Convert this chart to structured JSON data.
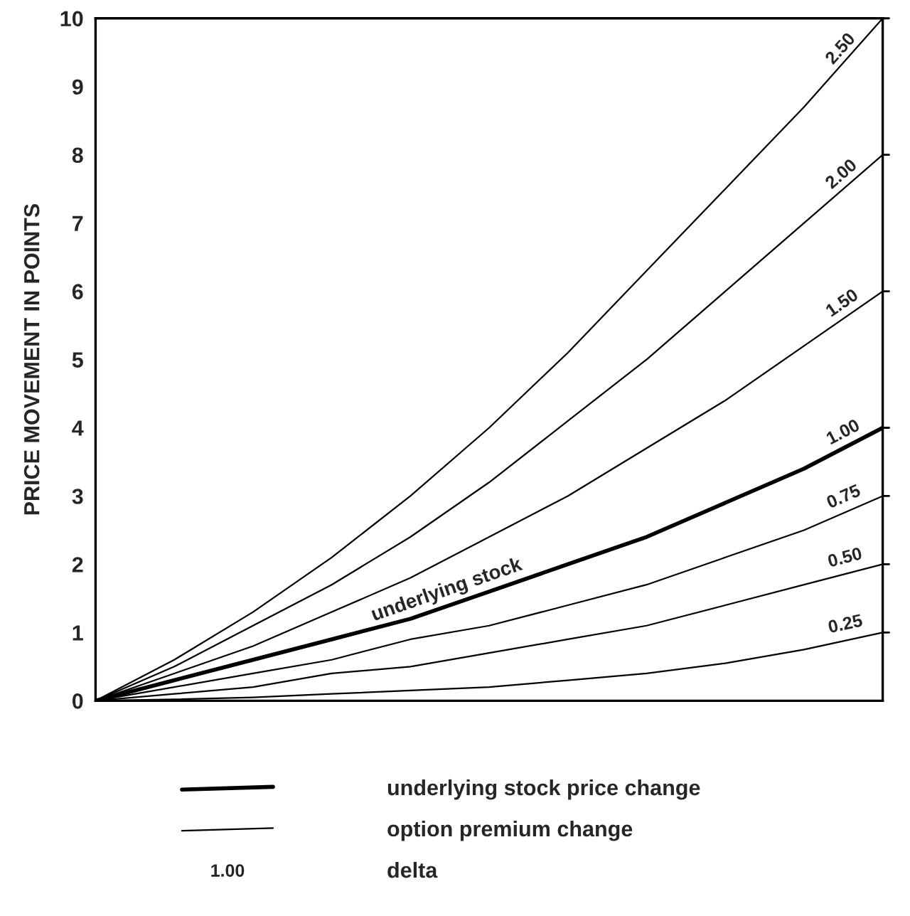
{
  "chart_data": {
    "type": "line",
    "ylabel": "PRICE MOVEMENT IN POINTS",
    "categories": [
      null,
      null,
      null,
      null,
      null,
      null,
      null,
      null,
      null,
      null,
      null
    ],
    "series": [
      {
        "name": "2.50",
        "color": "#000000",
        "values": [
          0,
          0.6,
          1.3,
          2.1,
          3.0,
          4.0,
          5.1,
          6.3,
          7.5,
          8.7,
          10
        ]
      },
      {
        "name": "2.00",
        "color": "#000000",
        "values": [
          0,
          0.5,
          1.1,
          1.7,
          2.4,
          3.2,
          4.1,
          5.0,
          6.0,
          7.0,
          8.0
        ]
      },
      {
        "name": "1.50",
        "color": "#000000",
        "values": [
          0,
          0.4,
          0.8,
          1.3,
          1.8,
          2.4,
          3.0,
          3.7,
          4.4,
          5.2,
          6.0
        ]
      },
      {
        "name": "1.00",
        "color": "#000000",
        "values": [
          0,
          0.3,
          0.6,
          0.9,
          1.2,
          1.6,
          2.0,
          2.4,
          2.9,
          3.4,
          4.0
        ]
      },
      {
        "name": "0.75",
        "color": "#000000",
        "values": [
          0,
          0.2,
          0.4,
          0.6,
          0.9,
          1.1,
          1.4,
          1.7,
          2.1,
          2.5,
          3.0
        ]
      },
      {
        "name": "0.50",
        "color": "#000000",
        "values": [
          0,
          0.1,
          0.2,
          0.4,
          0.5,
          0.7,
          0.9,
          1.1,
          1.4,
          1.7,
          2.0
        ]
      },
      {
        "name": "0.25",
        "color": "#000000",
        "values": [
          0,
          0.02,
          0.05,
          0.1,
          0.15,
          0.2,
          0.3,
          0.4,
          0.55,
          0.75,
          1.0
        ]
      }
    ],
    "annotations": [
      "underlying stock",
      "underlying stock price change",
      "option premium change",
      "1.00",
      "delta"
    ],
    "ylim": [
      0,
      10
    ],
    "yticks": [
      0,
      1,
      2,
      3,
      4,
      5,
      6,
      7,
      8,
      9,
      10
    ],
    "tick_labels": "y",
    "grid": false,
    "legend": "bottom",
    "marker": "none",
    "line_style": "solid"
  }
}
